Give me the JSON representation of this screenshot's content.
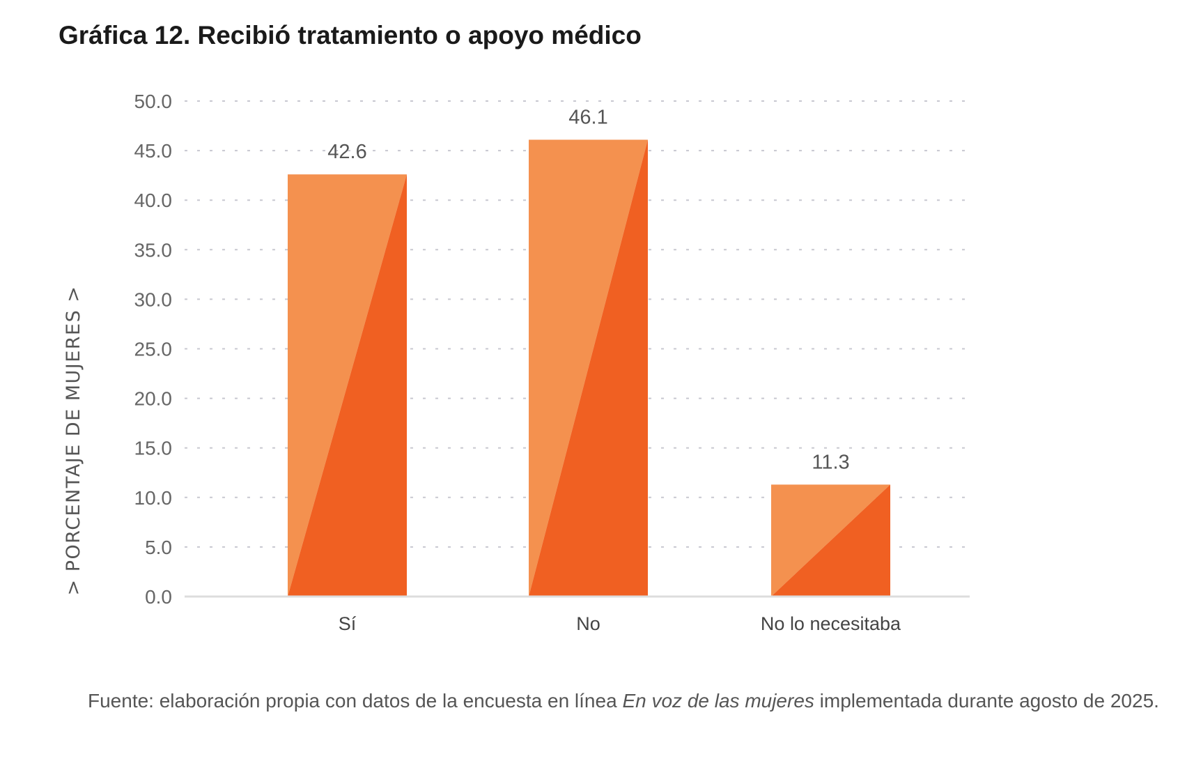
{
  "title": "Gráfica 12. Recibió tratamiento o apoyo médico",
  "chart_data": {
    "type": "bar",
    "title": "Gráfica 12. Recibió tratamiento o apoyo médico",
    "xlabel": "",
    "ylabel": "> PORCENTAJE DE MUJERES >",
    "categories": [
      "Sí",
      "No",
      "No lo necesitaba"
    ],
    "values": [
      42.6,
      46.1,
      11.3
    ],
    "data_labels": [
      "42.6",
      "46.1",
      "11.3"
    ],
    "ylim": [
      0,
      50
    ],
    "yticks": [
      "0.0",
      "5.0",
      "10.0",
      "15.0",
      "20.0",
      "25.0",
      "30.0",
      "35.0",
      "40.0",
      "45.0",
      "50.0"
    ],
    "grid": "horizontal dotted",
    "legend": "none",
    "colors": {
      "bar_light": "#F4914F",
      "bar_dark": "#F06022",
      "grid": "#C8C8D0",
      "axis": "#DDDDDD"
    }
  },
  "footer": {
    "prefix": "Fuente: elaboración propia con datos de la encuesta en línea ",
    "italic": "En voz de las mujeres",
    "suffix": " implementada durante agosto de 2025."
  }
}
